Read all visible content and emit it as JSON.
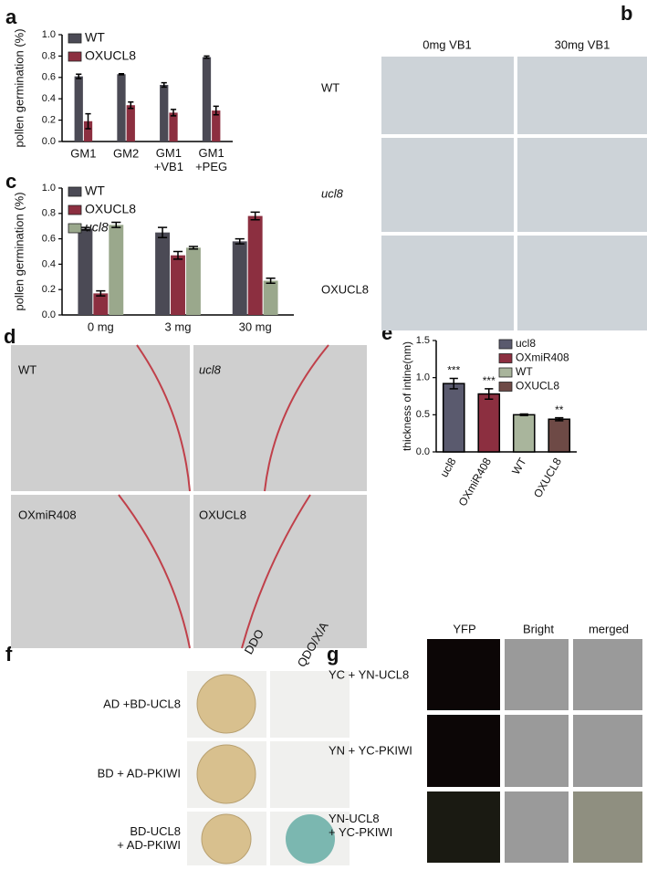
{
  "chart_data": [
    {
      "type": "bar",
      "ylabel": "pollen germination (%)",
      "categories": [
        "GM1",
        "GM2",
        "GM1\n+VB1",
        "GM1\n+PEG"
      ],
      "series": [
        {
          "name": "WT",
          "color": "#4b4a55",
          "values": [
            0.61,
            0.63,
            0.53,
            0.79
          ],
          "errors": [
            0.02,
            0.005,
            0.02,
            0.01
          ]
        },
        {
          "name": "OXUCL8",
          "color": "#8c2f40",
          "values": [
            0.19,
            0.34,
            0.27,
            0.29
          ],
          "errors": [
            0.07,
            0.03,
            0.03,
            0.04
          ]
        }
      ],
      "ylim": [
        0,
        1
      ],
      "yticks": [
        {
          "value": 0,
          "label": "0.0"
        },
        {
          "value": 0.2,
          "label": "0.2"
        },
        {
          "value": 0.4,
          "label": "0.4"
        },
        {
          "value": 0.6,
          "label": "0.6"
        },
        {
          "value": 0.8,
          "label": "0.8"
        },
        {
          "value": 1,
          "label": "1.0"
        }
      ],
      "legend": "upper left"
    },
    {
      "type": "bar",
      "ylabel": "pollen germination (%)",
      "categories": [
        "0 mg",
        "3 mg",
        "30 mg"
      ],
      "series": [
        {
          "name": "WT",
          "color": "#4b4a55",
          "values": [
            0.68,
            0.65,
            0.58
          ],
          "errors": [
            0.01,
            0.04,
            0.02
          ]
        },
        {
          "name": "OXUCL8",
          "color": "#8c2f40",
          "values": [
            0.17,
            0.47,
            0.78
          ],
          "errors": [
            0.02,
            0.03,
            0.03
          ]
        },
        {
          "name": "ucl8",
          "color": "#9aa88c",
          "italic": true,
          "values": [
            0.71,
            0.53,
            0.27
          ],
          "errors": [
            0.02,
            0.01,
            0.02
          ]
        }
      ],
      "ylim": [
        0,
        1
      ],
      "yticks": [
        {
          "value": 0,
          "label": "0.0"
        },
        {
          "value": 0.2,
          "label": "0.2"
        },
        {
          "value": 0.4,
          "label": "0.4"
        },
        {
          "value": 0.6,
          "label": "0.6"
        },
        {
          "value": 0.8,
          "label": "0.8"
        },
        {
          "value": 1,
          "label": "1.0"
        }
      ],
      "legend": "upper left"
    },
    {
      "type": "bar",
      "ylabel": "thickness of intine(nm)",
      "categories": [
        "ucl8",
        "OXmiR408",
        "WT",
        "OXUCL8"
      ],
      "values": [
        0.92,
        0.78,
        0.5,
        0.44
      ],
      "errors": [
        0.07,
        0.07,
        0.01,
        0.02
      ],
      "colors": [
        "#5a5a6e",
        "#8c2f40",
        "#a9b59c",
        "#6e4a46"
      ],
      "significance": [
        "***",
        "***",
        null,
        "**"
      ],
      "ylim": [
        0,
        1.5
      ],
      "yticks": [
        {
          "value": 0,
          "label": "0.0"
        },
        {
          "value": 0.5,
          "label": "0.5"
        },
        {
          "value": 1,
          "label": "1.0"
        },
        {
          "value": 1.5,
          "label": "1.5"
        }
      ],
      "legend": "upper right"
    }
  ],
  "panel_labels": [
    "a",
    "b",
    "c",
    "d",
    "e",
    "f",
    "g"
  ],
  "panel_b": {
    "columns": [
      "0mg VB1",
      "30mg VB1"
    ],
    "rows": [
      "WT",
      "ucl8",
      "OXUCL8"
    ]
  },
  "panel_d": {
    "images": [
      "WT",
      "ucl8",
      "OXmiR408",
      "OXUCL8"
    ]
  },
  "panel_f": {
    "columns": [
      "DDO",
      "QDO/X/A"
    ],
    "rows": [
      "AD +BD-UCL8",
      "BD + AD-PKIWI",
      "BD-UCL8\n+ AD-PKIWI"
    ]
  },
  "panel_g": {
    "columns": [
      "YFP",
      "Bright",
      "merged"
    ],
    "rows": [
      "YC + YN-UCL8",
      "YN + YC-PKIWI",
      "YN-UCL8\n+ YC-PKIWI"
    ]
  }
}
